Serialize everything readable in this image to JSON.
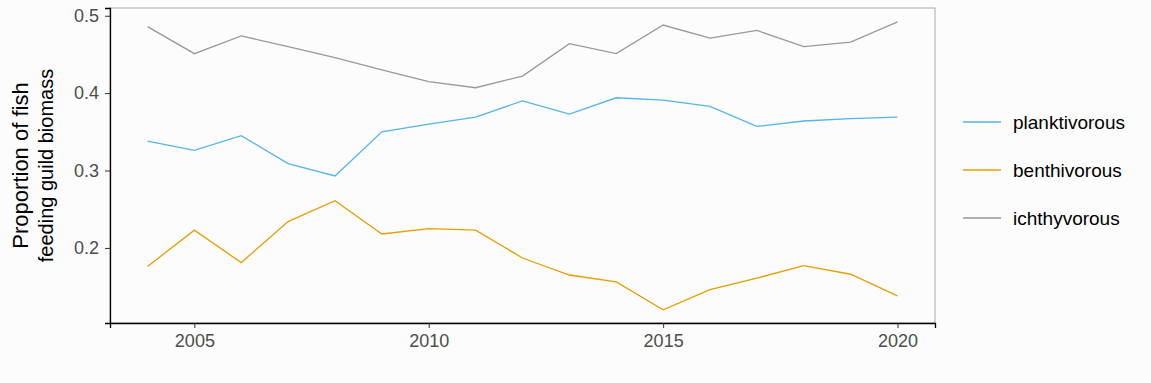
{
  "chart_data": {
    "type": "line",
    "y_label": [
      "Proportion of fish",
      "feeding guild biomass"
    ],
    "x": [
      2004,
      2005,
      2006,
      2007,
      2008,
      2009,
      2010,
      2011,
      2012,
      2013,
      2014,
      2015,
      2016,
      2017,
      2018,
      2019,
      2020
    ],
    "series": [
      {
        "name": "planktivorous",
        "color": "#56b4e9",
        "values": [
          0.338,
          0.326,
          0.345,
          0.309,
          0.293,
          0.35,
          0.36,
          0.369,
          0.39,
          0.373,
          0.394,
          0.391,
          0.383,
          0.357,
          0.364,
          0.367,
          0.369
        ]
      },
      {
        "name": "benthivorous",
        "color": "#e69f00",
        "values": [
          0.176,
          0.223,
          0.181,
          0.234,
          0.261,
          0.218,
          0.225,
          0.223,
          0.187,
          0.165,
          0.156,
          0.12,
          0.146,
          0.161,
          0.177,
          0.166,
          0.138
        ]
      },
      {
        "name": "ichthyvorous",
        "color": "#999999",
        "values": [
          0.486,
          0.451,
          0.474,
          0.46,
          0.446,
          0.43,
          0.415,
          0.407,
          0.422,
          0.464,
          0.451,
          0.488,
          0.471,
          0.481,
          0.46,
          0.466,
          0.492
        ]
      }
    ],
    "xlim": [
      2003.2,
      2020.8
    ],
    "xticks": [
      2005,
      2010,
      2015,
      2020
    ],
    "ylim": [
      0.103,
      0.51
    ],
    "yticks": [
      0.2,
      0.3,
      0.4,
      0.5
    ],
    "grid": false,
    "legend": "right"
  }
}
